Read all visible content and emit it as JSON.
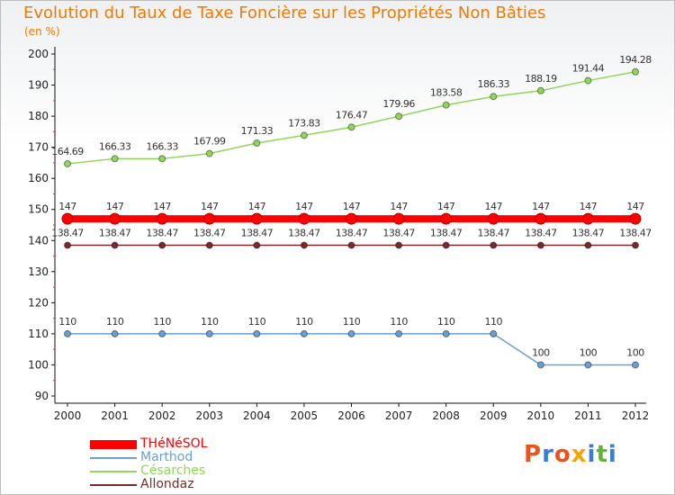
{
  "title": "Evolution du Taux de Taxe Foncière sur les Propriétés Non Bâties",
  "unit_label": "(en %)",
  "logo": {
    "text": "Proxiti",
    "colors": [
      "#e9541e",
      "#3a7bd5",
      "#e9541e",
      "#f4a30a",
      "#3a7bd5",
      "#5db531",
      "#3a7bd5"
    ]
  },
  "chart_data": {
    "type": "line",
    "title": "Evolution du Taux de Taxe Foncière sur les Propriétés Non Bâties",
    "ylabel": "(en %)",
    "xlabel": "",
    "ylim": [
      90,
      200
    ],
    "yticks": [
      90,
      100,
      110,
      120,
      130,
      140,
      150,
      160,
      170,
      180,
      190,
      200
    ],
    "categories": [
      "2000",
      "2001",
      "2002",
      "2003",
      "2004",
      "2005",
      "2006",
      "2007",
      "2008",
      "2009",
      "2010",
      "2011",
      "2012"
    ],
    "series": [
      {
        "name": "THéNéSOL",
        "color": "#ff0000",
        "values": [
          147,
          147,
          147,
          147,
          147,
          147,
          147,
          147,
          147,
          147,
          147,
          147,
          147
        ],
        "labels": [
          "147",
          "147",
          "147",
          "147",
          "147",
          "147",
          "147",
          "147",
          "147",
          "147",
          "147",
          "147",
          "147"
        ]
      },
      {
        "name": "Marthod",
        "color": "#6b9fcf",
        "values": [
          110,
          110,
          110,
          110,
          110,
          110,
          110,
          110,
          110,
          110,
          100,
          100,
          100
        ],
        "labels": [
          "110",
          "110",
          "110",
          "110",
          "110",
          "110",
          "110",
          "110",
          "110",
          "110",
          "100",
          "100",
          "100"
        ]
      },
      {
        "name": "Césarches",
        "color": "#90d65a",
        "values": [
          164.69,
          166.33,
          166.33,
          167.99,
          171.33,
          173.83,
          176.47,
          179.96,
          183.58,
          186.33,
          188.19,
          191.44,
          194.28
        ],
        "labels": [
          "164.69",
          "166.33",
          "166.33",
          "167.99",
          "171.33",
          "173.83",
          "176.47",
          "179.96",
          "183.58",
          "186.33",
          "188.19",
          "191.44",
          "194.28"
        ]
      },
      {
        "name": "Allondaz",
        "color": "#7a2a2a",
        "values": [
          138.47,
          138.47,
          138.47,
          138.47,
          138.47,
          138.47,
          138.47,
          138.47,
          138.47,
          138.47,
          138.47,
          138.47,
          138.47
        ],
        "labels": [
          "138.47",
          "138.47",
          "138.47",
          "138.47",
          "138.47",
          "138.47",
          "138.47",
          "138.47",
          "138.47",
          "138.47",
          "138.47",
          "138.47",
          "138.47"
        ]
      }
    ],
    "grid": false,
    "legend_position": "bottom-left"
  }
}
